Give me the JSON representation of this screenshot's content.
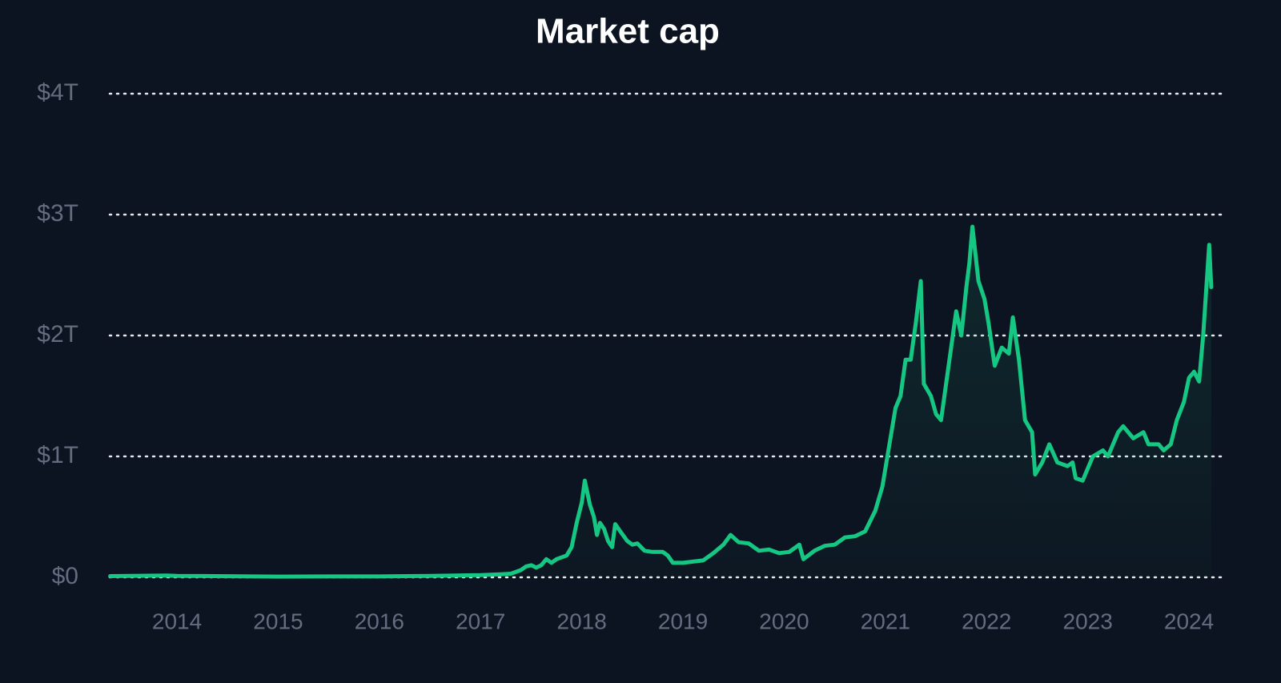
{
  "chart_data": {
    "type": "line",
    "title": "Market cap",
    "color": "#16c784",
    "grid": true,
    "xlim": [
      2013.335,
      2024.316
    ],
    "xticks": [
      2014,
      2015,
      2016,
      2017,
      2018,
      2019,
      2020,
      2021,
      2022,
      2023,
      2024
    ],
    "ylim": [
      0,
      4
    ],
    "yticks": [
      {
        "value": 0,
        "label": "$0"
      },
      {
        "value": 1,
        "label": "$1T"
      },
      {
        "value": 2,
        "label": "$2T"
      },
      {
        "value": 3,
        "label": "$3T"
      },
      {
        "value": 4,
        "label": "$4T"
      }
    ],
    "x": [
      2013.34,
      2013.9,
      2014.0,
      2014.5,
      2015.0,
      2015.5,
      2016.0,
      2016.5,
      2017.0,
      2017.2,
      2017.3,
      2017.4,
      2017.45,
      2017.5,
      2017.55,
      2017.6,
      2017.65,
      2017.7,
      2017.75,
      2017.85,
      2017.9,
      2017.95,
      2018.0,
      2018.03,
      2018.08,
      2018.12,
      2018.15,
      2018.18,
      2018.22,
      2018.26,
      2018.3,
      2018.33,
      2018.38,
      2018.45,
      2018.5,
      2018.55,
      2018.62,
      2018.7,
      2018.8,
      2018.85,
      2018.9,
      2019.0,
      2019.1,
      2019.2,
      2019.3,
      2019.4,
      2019.47,
      2019.55,
      2019.65,
      2019.75,
      2019.85,
      2019.95,
      2020.05,
      2020.15,
      2020.19,
      2020.3,
      2020.4,
      2020.5,
      2020.6,
      2020.7,
      2020.8,
      2020.9,
      2020.97,
      2021.02,
      2021.1,
      2021.15,
      2021.2,
      2021.25,
      2021.3,
      2021.35,
      2021.38,
      2021.45,
      2021.5,
      2021.55,
      2021.6,
      2021.65,
      2021.7,
      2021.75,
      2021.8,
      2021.83,
      2021.86,
      2021.92,
      2021.98,
      2022.02,
      2022.08,
      2022.15,
      2022.22,
      2022.26,
      2022.32,
      2022.38,
      2022.45,
      2022.48,
      2022.55,
      2022.62,
      2022.7,
      2022.8,
      2022.85,
      2022.88,
      2022.95,
      2023.05,
      2023.15,
      2023.2,
      2023.3,
      2023.35,
      2023.45,
      2023.55,
      2023.6,
      2023.7,
      2023.75,
      2023.82,
      2023.88,
      2023.95,
      2024.0,
      2024.05,
      2024.1,
      2024.14,
      2024.18,
      2024.2,
      2024.22
    ],
    "values": [
      0.01,
      0.015,
      0.012,
      0.009,
      0.006,
      0.007,
      0.007,
      0.012,
      0.018,
      0.025,
      0.03,
      0.06,
      0.09,
      0.1,
      0.08,
      0.1,
      0.15,
      0.12,
      0.15,
      0.18,
      0.25,
      0.45,
      0.62,
      0.8,
      0.6,
      0.5,
      0.35,
      0.45,
      0.4,
      0.3,
      0.25,
      0.44,
      0.38,
      0.3,
      0.27,
      0.28,
      0.22,
      0.21,
      0.21,
      0.18,
      0.12,
      0.12,
      0.13,
      0.14,
      0.2,
      0.27,
      0.35,
      0.29,
      0.28,
      0.22,
      0.23,
      0.2,
      0.21,
      0.27,
      0.15,
      0.22,
      0.26,
      0.27,
      0.33,
      0.34,
      0.38,
      0.55,
      0.75,
      1.0,
      1.4,
      1.5,
      1.8,
      1.8,
      2.1,
      2.45,
      1.6,
      1.5,
      1.35,
      1.3,
      1.6,
      1.9,
      2.2,
      2.0,
      2.4,
      2.6,
      2.9,
      2.45,
      2.3,
      2.1,
      1.75,
      1.9,
      1.85,
      2.15,
      1.8,
      1.3,
      1.2,
      0.85,
      0.95,
      1.1,
      0.95,
      0.92,
      0.95,
      0.82,
      0.8,
      1.0,
      1.05,
      1.0,
      1.2,
      1.25,
      1.15,
      1.2,
      1.1,
      1.1,
      1.05,
      1.1,
      1.3,
      1.45,
      1.65,
      1.7,
      1.62,
      2.0,
      2.5,
      2.75,
      2.4
    ]
  }
}
